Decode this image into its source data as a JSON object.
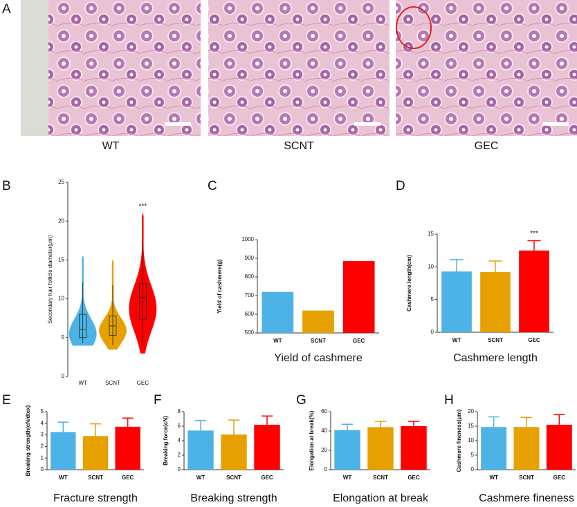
{
  "panel_a": {
    "letter": "A",
    "images": [
      {
        "label": "WT"
      },
      {
        "label": "SCNT"
      },
      {
        "label": "GEC"
      }
    ]
  },
  "chart_data": [
    {
      "type": "violin",
      "panel": "B",
      "ylabel": "Secondary hair follicle diameter(μm)",
      "categories": [
        "WT",
        "SCNT",
        "GEC"
      ],
      "colors": [
        "#4db3e6",
        "#e6a000",
        "#ff0000"
      ],
      "min": [
        4,
        3.5,
        3
      ],
      "q1": [
        5,
        5.3,
        7.3
      ],
      "median": [
        6,
        6.5,
        10.2
      ],
      "q3": [
        8,
        7.8,
        12
      ],
      "max": [
        15.5,
        15,
        21
      ],
      "ylim": [
        0,
        25
      ],
      "yticks": [
        0,
        5,
        10,
        15,
        20,
        25
      ],
      "annotation": "***"
    },
    {
      "type": "bar",
      "panel": "C",
      "ylabel": "Yield of cashmere(g)",
      "xlabel": "Yield of cashmere",
      "categories": [
        "WT",
        "SCNT",
        "GEC"
      ],
      "colors": [
        "#4db3e6",
        "#e6a000",
        "#ff0000"
      ],
      "values": [
        720,
        620,
        885
      ],
      "ylim": [
        500,
        1000
      ],
      "yticks": [
        500,
        600,
        700,
        800,
        900,
        1000
      ]
    },
    {
      "type": "bar",
      "panel": "D",
      "ylabel": "Cashmere length(cm)",
      "xlabel": "Cashmere length",
      "categories": [
        "WT",
        "SCNT",
        "GEC"
      ],
      "colors": [
        "#4db3e6",
        "#e6a000",
        "#ff0000"
      ],
      "values": [
        9.3,
        9.2,
        12.5
      ],
      "errors": [
        1.8,
        1.7,
        1.5
      ],
      "ylim": [
        0,
        15
      ],
      "yticks": [
        0,
        5,
        10,
        15
      ],
      "annotation": "***"
    },
    {
      "type": "bar",
      "panel": "E",
      "ylabel": "Breaking strength(cN/dtex)",
      "xlabel": "Fracture strength",
      "categories": [
        "WT",
        "SCNT",
        "GEC"
      ],
      "colors": [
        "#4db3e6",
        "#e6a000",
        "#ff0000"
      ],
      "values": [
        3.25,
        2.9,
        3.7
      ],
      "errors": [
        0.85,
        1.05,
        0.75
      ],
      "ylim": [
        0,
        5
      ],
      "yticks": [
        0,
        1,
        2,
        3,
        4,
        5
      ]
    },
    {
      "type": "bar",
      "panel": "F",
      "ylabel": "Breaking force(cN)",
      "xlabel": "Breaking strength",
      "categories": [
        "WT",
        "SCNT",
        "GEC"
      ],
      "colors": [
        "#4db3e6",
        "#e6a000",
        "#ff0000"
      ],
      "values": [
        5.4,
        4.85,
        6.2
      ],
      "errors": [
        1.4,
        2.0,
        1.2
      ],
      "ylim": [
        0,
        8
      ],
      "yticks": [
        0,
        2,
        4,
        6,
        8
      ]
    },
    {
      "type": "bar",
      "panel": "G",
      "ylabel": "Elongation at break(%)",
      "xlabel": "Elongation at break",
      "categories": [
        "WT",
        "SCNT",
        "GEC"
      ],
      "colors": [
        "#4db3e6",
        "#e6a000",
        "#ff0000"
      ],
      "values": [
        41,
        44,
        45
      ],
      "errors": [
        6,
        6,
        5
      ],
      "ylim": [
        0,
        60
      ],
      "yticks": [
        0,
        20,
        40,
        60
      ]
    },
    {
      "type": "bar",
      "panel": "H",
      "ylabel": "Cashmere fineness(μm)",
      "xlabel": "Cashmere fineness",
      "categories": [
        "WT",
        "SCNT",
        "GEC"
      ],
      "colors": [
        "#4db3e6",
        "#e6a000",
        "#ff0000"
      ],
      "values": [
        14.7,
        14.7,
        15.5
      ],
      "errors": [
        3.5,
        3.3,
        3.5
      ],
      "ylim": [
        0,
        20
      ],
      "yticks": [
        0,
        5,
        10,
        15,
        20
      ]
    }
  ]
}
